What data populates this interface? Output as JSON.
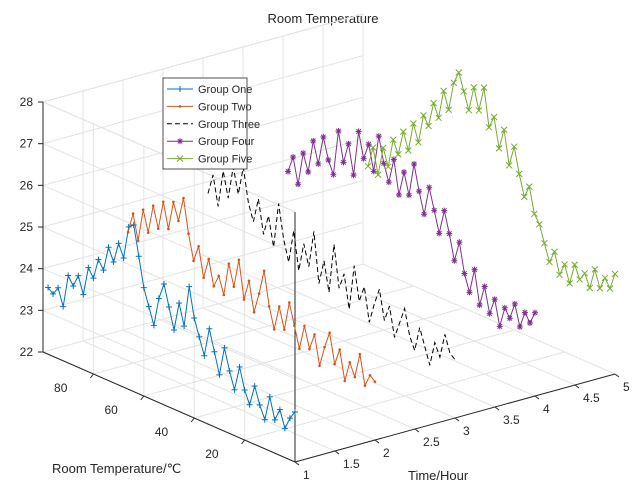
{
  "chart_data": {
    "type": "line3d",
    "title": "Room Temperature",
    "xlabel": "Time/Hour",
    "ylabel": "Room Temperature/℃",
    "zlabel": "",
    "xlim": [
      1,
      5
    ],
    "ylim": [
      0,
      100
    ],
    "zlim": [
      22,
      28
    ],
    "x_ticks": [
      "1",
      "1.5",
      "2",
      "2.5",
      "3",
      "3.5",
      "4",
      "4.5",
      "5"
    ],
    "y_ticks": [
      "20",
      "40",
      "60",
      "80"
    ],
    "z_ticks": [
      "22",
      "23",
      "24",
      "25",
      "26",
      "27",
      "28"
    ],
    "grid": true,
    "legend_position": "top-left",
    "series": [
      {
        "name": "Group One",
        "color": "#0072BD",
        "line_style": "solid",
        "marker": "+",
        "x": 1,
        "y": [
          98,
          96,
          94,
          92,
          90,
          88,
          86,
          84,
          82,
          80,
          78,
          76,
          74,
          72,
          70,
          68,
          66,
          64,
          62,
          60,
          58,
          56,
          54,
          52,
          50,
          48,
          46,
          44,
          42,
          40,
          38,
          36,
          34,
          32,
          30,
          28,
          26,
          24,
          22,
          20,
          18,
          16,
          14,
          12,
          10,
          8,
          6,
          4,
          2,
          0
        ],
        "z": [
          23.6,
          23.5,
          23.7,
          23.3,
          24.1,
          23.9,
          24.2,
          23.8,
          24.5,
          24.3,
          24.8,
          24.6,
          25.2,
          24.9,
          25.4,
          25.1,
          25.9,
          26.0,
          25.3,
          24.6,
          24.2,
          23.8,
          24.5,
          24.9,
          24.4,
          23.9,
          24.6,
          24.1,
          25.1,
          24.4,
          24.0,
          23.6,
          24.3,
          23.8,
          23.3,
          24.0,
          23.5,
          23.1,
          23.7,
          23.2,
          22.9,
          23.4,
          23.0,
          22.7,
          23.3,
          22.8,
          23.1,
          22.7,
          23.0,
          23.2
        ]
      },
      {
        "name": "Group Two",
        "color": "#D95319",
        "line_style": "solid",
        "marker": ".",
        "x": 2,
        "y": [
          98,
          96,
          94,
          92,
          90,
          88,
          86,
          84,
          82,
          80,
          78,
          76,
          74,
          72,
          70,
          68,
          66,
          64,
          62,
          60,
          58,
          56,
          54,
          52,
          50,
          48,
          46,
          44,
          42,
          40,
          38,
          36,
          34,
          32,
          30,
          28,
          26,
          24,
          22,
          20,
          18,
          16,
          14,
          12,
          10,
          8,
          6,
          4,
          2,
          0
        ],
        "z": [
          24.4,
          24.9,
          24.3,
          25.1,
          24.6,
          25.3,
          24.8,
          25.5,
          24.9,
          25.6,
          25.2,
          25.8,
          25.0,
          24.4,
          24.8,
          24.1,
          24.6,
          24.0,
          24.3,
          23.9,
          24.7,
          24.2,
          24.9,
          24.0,
          24.5,
          23.8,
          24.3,
          24.9,
          24.1,
          23.6,
          24.2,
          23.7,
          24.4,
          23.9,
          23.4,
          24.0,
          23.5,
          23.9,
          23.2,
          23.7,
          24.1,
          23.4,
          23.8,
          23.1,
          23.6,
          23.3,
          23.9,
          23.2,
          23.5,
          23.4
        ]
      },
      {
        "name": "Group Three",
        "color": "#000000",
        "line_style": "dashed",
        "marker": "none",
        "x": 3,
        "y": [
          98,
          96,
          94,
          92,
          90,
          88,
          86,
          84,
          82,
          80,
          78,
          76,
          74,
          72,
          70,
          68,
          66,
          64,
          62,
          60,
          58,
          56,
          54,
          52,
          50,
          48,
          46,
          44,
          42,
          40,
          38,
          36,
          34,
          32,
          30,
          28,
          26,
          24,
          22,
          20,
          18,
          16,
          14,
          12,
          10,
          8,
          6,
          4,
          2,
          0
        ],
        "z": [
          24.8,
          25.3,
          24.6,
          25.5,
          24.9,
          25.7,
          25.1,
          25.8,
          25.0,
          24.6,
          25.2,
          24.4,
          24.9,
          24.2,
          25.3,
          24.5,
          24.0,
          24.8,
          23.9,
          24.6,
          24.1,
          25.0,
          23.8,
          24.4,
          23.7,
          24.9,
          23.9,
          24.3,
          23.5,
          24.6,
          23.8,
          24.2,
          23.4,
          23.9,
          24.3,
          23.6,
          24.0,
          23.3,
          23.7,
          24.1,
          23.5,
          23.2,
          23.8,
          23.4,
          23.0,
          23.6,
          23.3,
          23.9,
          23.5,
          23.4
        ]
      },
      {
        "name": "Group Four",
        "color": "#7E2F8E",
        "line_style": "solid",
        "marker": "*",
        "x": 4,
        "y": [
          98,
          96,
          94,
          92,
          90,
          88,
          86,
          84,
          82,
          80,
          78,
          76,
          74,
          72,
          70,
          68,
          66,
          64,
          62,
          60,
          58,
          56,
          54,
          52,
          50,
          48,
          46,
          44,
          42,
          40,
          38,
          36,
          34,
          32,
          30,
          28,
          26,
          24,
          22,
          20,
          18,
          16,
          14,
          12,
          10,
          8,
          6,
          4,
          2,
          0
        ],
        "z": [
          24.8,
          25.2,
          24.6,
          25.4,
          25.0,
          25.8,
          25.3,
          26.0,
          25.5,
          25.2,
          26.3,
          25.6,
          26.1,
          25.4,
          26.5,
          25.9,
          26.3,
          25.7,
          26.6,
          26.0,
          25.6,
          26.2,
          25.4,
          26.0,
          25.5,
          26.3,
          25.7,
          25.2,
          25.9,
          25.4,
          24.9,
          25.5,
          25.0,
          24.4,
          24.9,
          24.2,
          23.8,
          24.4,
          23.6,
          24.1,
          23.5,
          23.9,
          23.3,
          23.8,
          23.6,
          24.0,
          23.5,
          23.9,
          23.7,
          24.0
        ]
      },
      {
        "name": "Group Five",
        "color": "#77AC30",
        "line_style": "solid",
        "marker": "x",
        "x": 5,
        "y": [
          98,
          96,
          94,
          92,
          90,
          88,
          86,
          84,
          82,
          80,
          78,
          76,
          74,
          72,
          70,
          68,
          66,
          64,
          62,
          60,
          58,
          56,
          54,
          52,
          50,
          48,
          46,
          44,
          42,
          40,
          38,
          36,
          34,
          32,
          30,
          28,
          26,
          24,
          22,
          20,
          18,
          16,
          14,
          12,
          10,
          8,
          6,
          4,
          2,
          0
        ],
        "z": [
          24.4,
          24.9,
          24.3,
          25.0,
          24.6,
          25.3,
          25.0,
          25.6,
          25.2,
          25.9,
          25.5,
          26.2,
          26.0,
          26.6,
          26.3,
          27.0,
          26.6,
          27.3,
          27.6,
          27.2,
          26.8,
          27.4,
          26.9,
          27.5,
          26.6,
          26.9,
          26.2,
          26.7,
          25.9,
          26.4,
          25.8,
          25.3,
          25.6,
          25.0,
          24.8,
          24.4,
          24.0,
          24.3,
          23.8,
          24.1,
          23.7,
          24.2,
          23.9,
          24.1,
          23.8,
          24.3,
          23.9,
          24.2,
          24.0,
          24.4
        ]
      }
    ]
  }
}
